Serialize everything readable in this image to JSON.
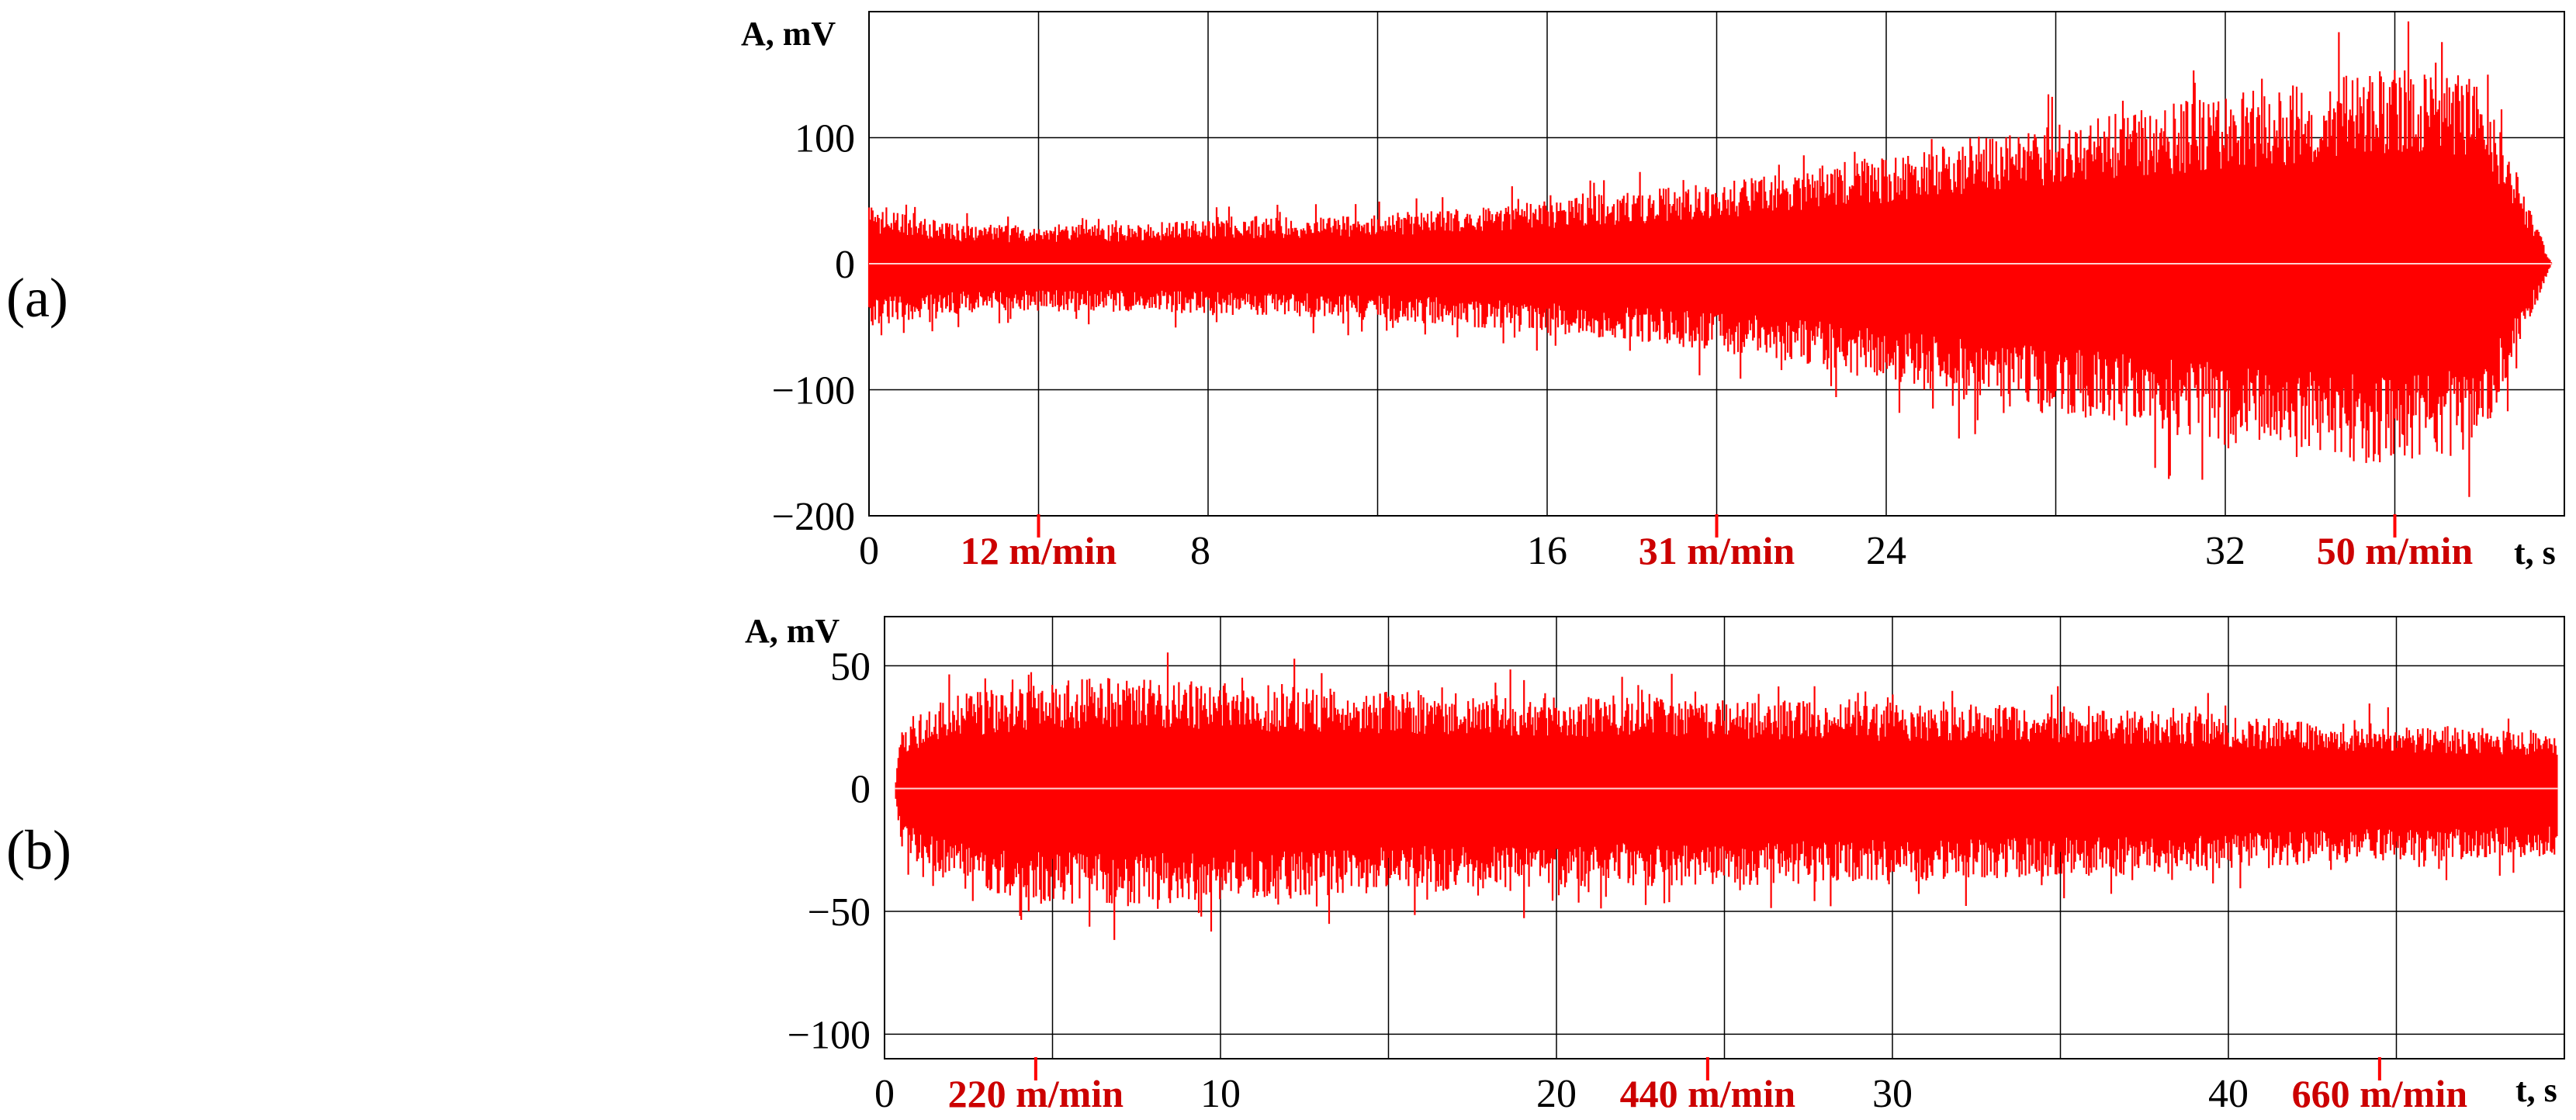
{
  "chart_data": [
    {
      "type": "line",
      "panel_label": "(a)",
      "ylabel": "A, mV",
      "xlabel": "t, s",
      "xlim": [
        0,
        40
      ],
      "ylim": [
        -200,
        200
      ],
      "x_ticks": [
        "0",
        "8",
        "16",
        "24",
        "32"
      ],
      "y_ticks": [
        "100",
        "0",
        "−100",
        "−200"
      ],
      "grid": true,
      "series_color": "#ff0000",
      "envelope": {
        "t": [
          0,
          2,
          4,
          6,
          8,
          10,
          12,
          14,
          16,
          18,
          20,
          22,
          24,
          26,
          28,
          30,
          32,
          34,
          36,
          38,
          39.7
        ],
        "upper": [
          45,
          32,
          30,
          32,
          35,
          37,
          40,
          45,
          50,
          57,
          65,
          75,
          88,
          100,
          110,
          125,
          135,
          145,
          155,
          150,
          0
        ],
        "lower": [
          -50,
          -40,
          -38,
          -38,
          -40,
          -42,
          -45,
          -50,
          -55,
          -62,
          -70,
          -80,
          -95,
          -110,
          -120,
          -130,
          -145,
          -155,
          -160,
          -150,
          0
        ]
      },
      "annotations": [
        {
          "label": "12 m/min",
          "x": 4
        },
        {
          "label": "31 m/min",
          "x": 20
        },
        {
          "label": "50 m/min",
          "x": 36
        }
      ]
    },
    {
      "type": "line",
      "panel_label": "(b)",
      "ylabel": "A, mV",
      "xlabel": "t, s",
      "xlim": [
        0,
        50
      ],
      "ylim": [
        -110,
        70
      ],
      "x_ticks": [
        "0",
        "10",
        "20",
        "30",
        "40"
      ],
      "y_ticks": [
        "50",
        "0",
        "−50",
        "−100"
      ],
      "grid": true,
      "series_color": "#ff0000",
      "envelope": {
        "t": [
          0.3,
          0.5,
          1,
          2,
          4,
          6,
          8,
          10,
          12,
          14,
          16,
          18,
          20,
          22,
          24,
          26,
          28,
          30,
          32,
          34,
          36,
          38,
          40,
          42,
          44,
          46,
          48,
          49.8
        ],
        "upper": [
          0,
          25,
          30,
          38,
          42,
          45,
          45,
          43,
          42,
          40,
          40,
          38,
          38,
          38,
          37,
          36,
          36,
          35,
          35,
          34,
          33,
          32,
          30,
          28,
          27,
          26,
          25,
          25
        ],
        "lower": [
          0,
          -25,
          -30,
          -40,
          -45,
          -48,
          -48,
          -45,
          -45,
          -43,
          -42,
          -42,
          -42,
          -40,
          -40,
          -40,
          -38,
          -38,
          -38,
          -36,
          -36,
          -35,
          -33,
          -32,
          -30,
          -30,
          -28,
          -28
        ]
      },
      "annotations": [
        {
          "label": "220 m/min",
          "x": 4.5
        },
        {
          "label": "440 m/min",
          "x": 24.5
        },
        {
          "label": "660 m/min",
          "x": 44.5
        }
      ]
    }
  ]
}
